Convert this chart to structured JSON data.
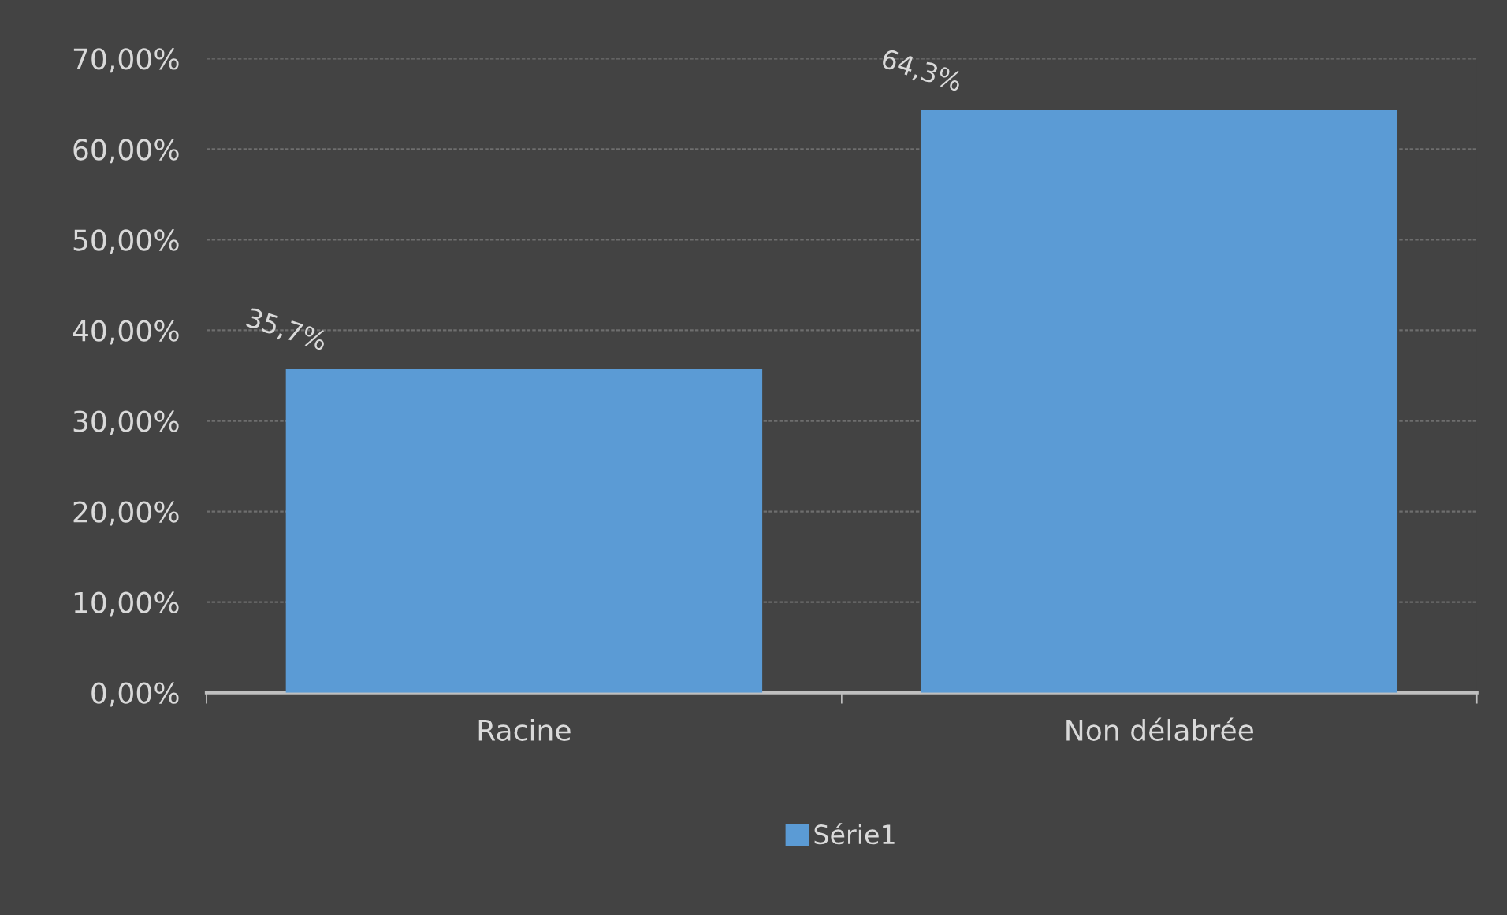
{
  "chart_data": {
    "type": "bar",
    "categories": [
      "Racine",
      "Non délabrée"
    ],
    "series": [
      {
        "name": "Série1",
        "color": "#5b9bd5",
        "values": [
          35.7,
          64.3
        ],
        "value_labels": [
          "35,7%",
          "64,3%"
        ]
      }
    ],
    "ylim": [
      0,
      70
    ],
    "yticks": [
      {
        "value": 0,
        "label": "0,00%"
      },
      {
        "value": 10,
        "label": "10,00%"
      },
      {
        "value": 20,
        "label": "20,00%"
      },
      {
        "value": 30,
        "label": "30,00%"
      },
      {
        "value": 40,
        "label": "40,00%"
      },
      {
        "value": 50,
        "label": "50,00%"
      },
      {
        "value": 60,
        "label": "60,00%"
      },
      {
        "value": 70,
        "label": "70,00%"
      }
    ],
    "grid": "y",
    "legend": "bottom"
  }
}
